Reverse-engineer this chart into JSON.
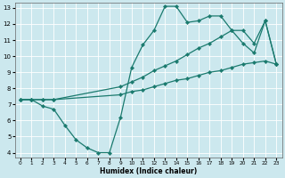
{
  "xlabel": "Humidex (Indice chaleur)",
  "bg_color": "#cce8ee",
  "grid_color": "#ffffff",
  "line_color": "#1a7a6e",
  "xlim": [
    -0.5,
    23.5
  ],
  "ylim": [
    3.7,
    13.3
  ],
  "xticks": [
    0,
    1,
    2,
    3,
    4,
    5,
    6,
    7,
    8,
    9,
    10,
    11,
    12,
    13,
    14,
    15,
    16,
    17,
    18,
    19,
    20,
    21,
    22,
    23
  ],
  "yticks": [
    4,
    5,
    6,
    7,
    8,
    9,
    10,
    11,
    12,
    13
  ],
  "line1_x": [
    0,
    1,
    2,
    3,
    4,
    5,
    6,
    7,
    8,
    9,
    10,
    11,
    12,
    13,
    14,
    15,
    16,
    17,
    18,
    19,
    20,
    21,
    22,
    23
  ],
  "line1_y": [
    7.3,
    7.3,
    6.9,
    6.7,
    5.7,
    4.8,
    4.3,
    4.0,
    4.0,
    6.2,
    9.3,
    10.7,
    11.6,
    13.1,
    13.1,
    12.1,
    12.2,
    12.5,
    12.5,
    11.6,
    10.8,
    10.2,
    12.2,
    9.5
  ],
  "line2_x": [
    0,
    1,
    2,
    3,
    9,
    10,
    11,
    12,
    13,
    14,
    15,
    16,
    17,
    18,
    19,
    20,
    21,
    22,
    23
  ],
  "line2_y": [
    7.3,
    7.3,
    7.3,
    7.3,
    8.1,
    8.4,
    8.7,
    9.1,
    9.4,
    9.7,
    10.1,
    10.5,
    10.8,
    11.2,
    11.6,
    11.6,
    10.8,
    12.2,
    9.5
  ],
  "line3_x": [
    0,
    1,
    2,
    3,
    9,
    10,
    11,
    12,
    13,
    14,
    15,
    16,
    17,
    18,
    19,
    20,
    21,
    22,
    23
  ],
  "line3_y": [
    7.3,
    7.3,
    7.3,
    7.3,
    7.6,
    7.8,
    7.9,
    8.1,
    8.3,
    8.5,
    8.6,
    8.8,
    9.0,
    9.1,
    9.3,
    9.5,
    9.6,
    9.7,
    9.5
  ]
}
